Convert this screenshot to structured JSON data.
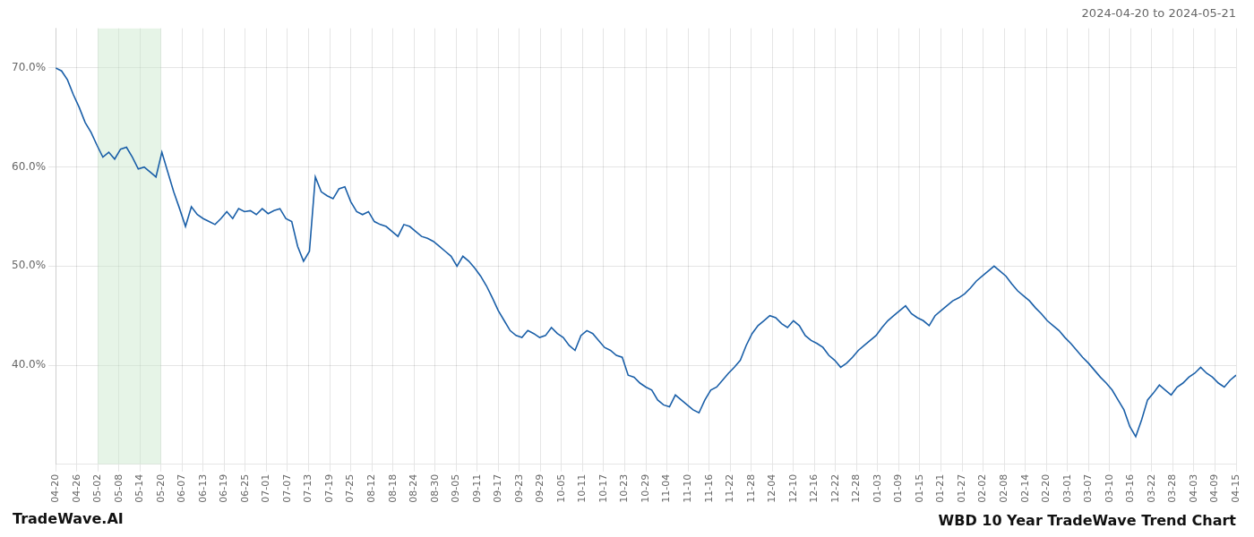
{
  "chart_data": {
    "type": "line",
    "title": "WBD 10 Year TradeWave Trend Chart",
    "subtitle": "2024-04-20 to 2024-05-21",
    "annotations": [
      "TradeWave.AI"
    ],
    "color": "#1a5fa8",
    "grid": true,
    "x": [
      0,
      1,
      2,
      3,
      4,
      5,
      6,
      7,
      8,
      9,
      10,
      11,
      12,
      13,
      14,
      15,
      16,
      17,
      18,
      19,
      20,
      21,
      22,
      23,
      24,
      25,
      26,
      27,
      28,
      29,
      30,
      31,
      32,
      33,
      34,
      35,
      36,
      37,
      38,
      39,
      40,
      41,
      42,
      43,
      44,
      45,
      46,
      47,
      48,
      49,
      50,
      51,
      52,
      53,
      54,
      55,
      56,
      57,
      58,
      59,
      60,
      61,
      62,
      63,
      64,
      65,
      66,
      67,
      68,
      69,
      70,
      71,
      72,
      73,
      74,
      75,
      76,
      77,
      78,
      79,
      80,
      81,
      82,
      83,
      84,
      85,
      86,
      87,
      88,
      89,
      90,
      91,
      92,
      93,
      94,
      95,
      96,
      97,
      98,
      99,
      100,
      101,
      102,
      103,
      104,
      105,
      106,
      107,
      108,
      109,
      110,
      111,
      112,
      113,
      114,
      115,
      116,
      117,
      118,
      119,
      120,
      121,
      122,
      123,
      124,
      125,
      126,
      127,
      128,
      129,
      130,
      131,
      132,
      133,
      134,
      135,
      136,
      137,
      138,
      139,
      140,
      141,
      142,
      143,
      144,
      145,
      146,
      147,
      148,
      149,
      150,
      151,
      152,
      153,
      154,
      155,
      156,
      157,
      158,
      159,
      160,
      161,
      162,
      163,
      164,
      165,
      166,
      167,
      168,
      169,
      170,
      171,
      172,
      173,
      174,
      175,
      176,
      177,
      178,
      179,
      180,
      181,
      182,
      183,
      184,
      185,
      186,
      187,
      188,
      189,
      190,
      191,
      192,
      193,
      194,
      195,
      196,
      197,
      198,
      199,
      200
    ],
    "values": [
      0.7,
      0.697,
      0.688,
      0.673,
      0.66,
      0.645,
      0.635,
      0.622,
      0.61,
      0.615,
      0.608,
      0.618,
      0.62,
      0.61,
      0.598,
      0.6,
      0.595,
      0.59,
      0.615,
      0.595,
      0.575,
      0.558,
      0.54,
      0.56,
      0.552,
      0.548,
      0.545,
      0.542,
      0.548,
      0.555,
      0.548,
      0.558,
      0.555,
      0.556,
      0.552,
      0.558,
      0.553,
      0.556,
      0.558,
      0.548,
      0.545,
      0.52,
      0.505,
      0.515,
      0.59,
      0.575,
      0.571,
      0.568,
      0.578,
      0.58,
      0.565,
      0.555,
      0.552,
      0.555,
      0.545,
      0.542,
      0.54,
      0.535,
      0.53,
      0.542,
      0.54,
      0.535,
      0.53,
      0.528,
      0.525,
      0.52,
      0.515,
      0.51,
      0.5,
      0.51,
      0.505,
      0.498,
      0.49,
      0.48,
      0.468,
      0.455,
      0.445,
      0.435,
      0.43,
      0.428,
      0.435,
      0.432,
      0.428,
      0.43,
      0.438,
      0.432,
      0.428,
      0.42,
      0.415,
      0.43,
      0.435,
      0.432,
      0.425,
      0.418,
      0.415,
      0.41,
      0.408,
      0.39,
      0.388,
      0.382,
      0.378,
      0.375,
      0.365,
      0.36,
      0.358,
      0.37,
      0.365,
      0.36,
      0.355,
      0.352,
      0.365,
      0.375,
      0.378,
      0.385,
      0.392,
      0.398,
      0.405,
      0.42,
      0.432,
      0.44,
      0.445,
      0.45,
      0.448,
      0.442,
      0.438,
      0.445,
      0.44,
      0.43,
      0.425,
      0.422,
      0.418,
      0.41,
      0.405,
      0.398,
      0.402,
      0.408,
      0.415,
      0.42,
      0.425,
      0.43,
      0.438,
      0.445,
      0.45,
      0.455,
      0.46,
      0.452,
      0.448,
      0.445,
      0.44,
      0.45,
      0.455,
      0.46,
      0.465,
      0.468,
      0.472,
      0.478,
      0.485,
      0.49,
      0.495,
      0.5,
      0.495,
      0.49,
      0.482,
      0.475,
      0.47,
      0.465,
      0.458,
      0.452,
      0.445,
      0.44,
      0.435,
      0.428,
      0.422,
      0.415,
      0.408,
      0.402,
      0.395,
      0.388,
      0.382,
      0.375,
      0.365,
      0.355,
      0.338,
      0.328,
      0.345,
      0.365,
      0.372,
      0.38,
      0.375,
      0.37,
      0.378,
      0.382,
      0.388,
      0.392,
      0.398,
      0.392,
      0.388,
      0.382,
      0.378,
      0.385,
      0.39
    ],
    "xlim": [
      0,
      200
    ],
    "xticks": [
      {
        "value": 0,
        "label": "04-20"
      },
      {
        "value": 3.5714285714,
        "label": "04-26"
      },
      {
        "value": 7.1428571429,
        "label": "05-02"
      },
      {
        "value": 10.7142857143,
        "label": "05-08"
      },
      {
        "value": 14.2857142857,
        "label": "05-14"
      },
      {
        "value": 17.8571428571,
        "label": "05-20"
      },
      {
        "value": 21.4285714286,
        "label": "06-07"
      },
      {
        "value": 25,
        "label": "06-13"
      },
      {
        "value": 28.5714285714,
        "label": "06-19"
      },
      {
        "value": 32.1428571429,
        "label": "06-25"
      },
      {
        "value": 35.7142857143,
        "label": "07-01"
      },
      {
        "value": 39.2857142857,
        "label": "07-07"
      },
      {
        "value": 42.8571428571,
        "label": "07-13"
      },
      {
        "value": 46.4285714286,
        "label": "07-19"
      },
      {
        "value": 50,
        "label": "07-25"
      },
      {
        "value": 53.5714285714,
        "label": "08-12"
      },
      {
        "value": 57.1428571429,
        "label": "08-18"
      },
      {
        "value": 60.7142857143,
        "label": "08-24"
      },
      {
        "value": 64.2857142857,
        "label": "08-30"
      },
      {
        "value": 67.8571428571,
        "label": "09-05"
      },
      {
        "value": 71.4285714286,
        "label": "09-11"
      },
      {
        "value": 75,
        "label": "09-17"
      },
      {
        "value": 78.5714285714,
        "label": "09-23"
      },
      {
        "value": 82.1428571429,
        "label": "09-29"
      },
      {
        "value": 85.7142857143,
        "label": "10-05"
      },
      {
        "value": 89.2857142857,
        "label": "10-11"
      },
      {
        "value": 92.8571428571,
        "label": "10-17"
      },
      {
        "value": 96.4285714286,
        "label": "10-23"
      },
      {
        "value": 100,
        "label": "10-29"
      },
      {
        "value": 103.5714285714,
        "label": "11-04"
      },
      {
        "value": 107.1428571429,
        "label": "11-10"
      },
      {
        "value": 110.7142857143,
        "label": "11-16"
      },
      {
        "value": 114.2857142857,
        "label": "11-22"
      },
      {
        "value": 117.8571428571,
        "label": "11-28"
      },
      {
        "value": 121.4285714286,
        "label": "12-04"
      },
      {
        "value": 125,
        "label": "12-10"
      },
      {
        "value": 128.5714285714,
        "label": "12-16"
      },
      {
        "value": 132.1428571429,
        "label": "12-22"
      },
      {
        "value": 135.7142857143,
        "label": "12-28"
      },
      {
        "value": 139.2857142857,
        "label": "01-03"
      },
      {
        "value": 142.8571428571,
        "label": "01-09"
      },
      {
        "value": 146.4285714286,
        "label": "01-15"
      },
      {
        "value": 150,
        "label": "01-21"
      },
      {
        "value": 153.5714285714,
        "label": "01-27"
      },
      {
        "value": 157.1428571429,
        "label": "02-02"
      },
      {
        "value": 160.7142857143,
        "label": "02-08"
      },
      {
        "value": 164.2857142857,
        "label": "02-14"
      },
      {
        "value": 167.8571428571,
        "label": "02-20"
      },
      {
        "value": 171.4285714286,
        "label": "03-01"
      },
      {
        "value": 175,
        "label": "03-07"
      },
      {
        "value": 178.5714285714,
        "label": "03-10"
      },
      {
        "value": 182.1428571429,
        "label": "03-16"
      },
      {
        "value": 185.7142857143,
        "label": "03-22"
      },
      {
        "value": 189.2857142857,
        "label": "03-28"
      },
      {
        "value": 192.8571428571,
        "label": "04-03"
      },
      {
        "value": 196.4285714286,
        "label": "04-09"
      },
      {
        "value": 200,
        "label": "04-15"
      }
    ],
    "ylim": [
      0.3,
      0.74
    ],
    "yticks": [
      {
        "value": 0.4,
        "label": "40.0%"
      },
      {
        "value": 0.5,
        "label": "50.0%"
      },
      {
        "value": 0.6,
        "label": "60.0%"
      },
      {
        "value": 0.7,
        "label": "70.0%"
      }
    ],
    "shaded_span": {
      "from": "05-02",
      "to": "05-20",
      "color": "#c8e6c9"
    }
  }
}
